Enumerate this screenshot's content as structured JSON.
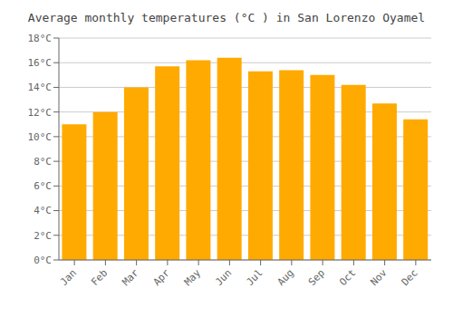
{
  "chart_data": {
    "type": "bar",
    "title": "Average monthly temperatures (°C ) in San Lorenzo Oyamel",
    "categories": [
      "Jan",
      "Feb",
      "Mar",
      "Apr",
      "May",
      "Jun",
      "Jul",
      "Aug",
      "Sep",
      "Oct",
      "Nov",
      "Dec"
    ],
    "values": [
      11.0,
      12.0,
      14.0,
      15.7,
      16.2,
      16.4,
      15.3,
      15.4,
      15.0,
      14.2,
      12.7,
      11.4
    ],
    "color": "#FFAA00",
    "ylim": [
      0,
      18
    ],
    "yticks": [
      {
        "value": 0,
        "label": "0°C"
      },
      {
        "value": 2,
        "label": "2°C"
      },
      {
        "value": 4,
        "label": "4°C"
      },
      {
        "value": 6,
        "label": "6°C"
      },
      {
        "value": 8,
        "label": "8°C"
      },
      {
        "value": 10,
        "label": "10°C"
      },
      {
        "value": 12,
        "label": "12°C"
      },
      {
        "value": 14,
        "label": "14°C"
      },
      {
        "value": 16,
        "label": "16°C"
      },
      {
        "value": 18,
        "label": "18°C"
      }
    ],
    "grid": true
  }
}
